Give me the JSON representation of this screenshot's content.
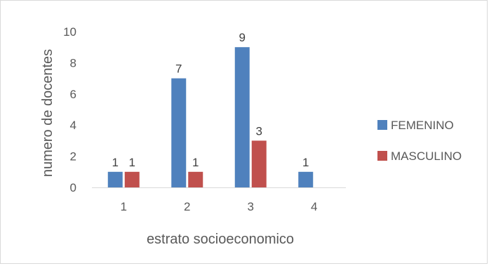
{
  "chart_data": {
    "type": "bar",
    "categories": [
      "1",
      "2",
      "3",
      "4"
    ],
    "series": [
      {
        "name": "FEMENINO",
        "values": [
          1,
          7,
          9,
          1
        ],
        "labels": [
          "1",
          "7",
          "9",
          "1"
        ],
        "color": "#4f81bd"
      },
      {
        "name": "MASCULINO",
        "values": [
          1,
          1,
          3,
          null
        ],
        "labels": [
          "1",
          "1",
          "3",
          ""
        ],
        "color": "#c0504d"
      }
    ],
    "xlabel": "estrato socioeconomico",
    "ylabel": "numero de docentes",
    "ylim": [
      0,
      10
    ],
    "yticks": [
      "0",
      "2",
      "4",
      "6",
      "8",
      "10"
    ],
    "grid": false,
    "legend": "right"
  }
}
